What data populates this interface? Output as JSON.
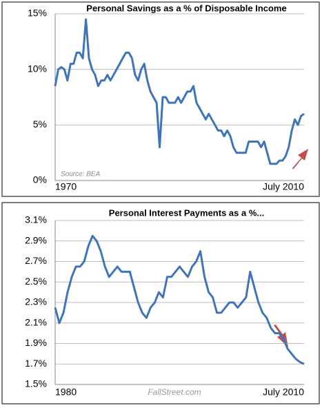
{
  "chart_data": [
    {
      "type": "line",
      "title": "Personal Savings as a % of Disposable Income",
      "annotation": "Source: BEA",
      "color": "#3f74bb",
      "categories": [
        "1970",
        null,
        null,
        null,
        null,
        null,
        null,
        null,
        null,
        null,
        null,
        null,
        null,
        null,
        null,
        null,
        null,
        null,
        null,
        null,
        null,
        null,
        null,
        null,
        null,
        null,
        null,
        null,
        null,
        null,
        null,
        null,
        null,
        null,
        null,
        null,
        null,
        null,
        null,
        null,
        null,
        null,
        null,
        null,
        null,
        null,
        null,
        null,
        null,
        null,
        null,
        null,
        null,
        null,
        null,
        null,
        null,
        null,
        null,
        null,
        null,
        null,
        null,
        null,
        null,
        null,
        null,
        null,
        null,
        null,
        null,
        null,
        null,
        null,
        null,
        null,
        null,
        null,
        null,
        null,
        null,
        "July 2010"
      ],
      "values": [
        8.5,
        10.0,
        10.2,
        10.0,
        9.0,
        10.5,
        10.5,
        11.5,
        11.5,
        11.0,
        14.5,
        11.0,
        10.0,
        9.5,
        8.5,
        9.0,
        9.0,
        9.5,
        9.0,
        9.5,
        10.0,
        10.5,
        11.0,
        11.5,
        11.5,
        11.0,
        9.5,
        9.0,
        10.0,
        10.5,
        9.0,
        8.0,
        7.5,
        7.0,
        3.0,
        7.5,
        7.5,
        7.0,
        7.0,
        7.0,
        7.5,
        7.0,
        7.5,
        8.0,
        8.0,
        8.5,
        7.0,
        6.5,
        6.0,
        5.5,
        6.0,
        5.5,
        5.0,
        4.5,
        4.5,
        4.0,
        4.5,
        4.0,
        3.0,
        2.5,
        2.5,
        2.5,
        2.5,
        3.5,
        3.5,
        3.5,
        3.5,
        3.0,
        3.5,
        2.5,
        1.5,
        1.5,
        1.5,
        1.8,
        1.8,
        2.2,
        3.0,
        4.5,
        5.5,
        5.0,
        5.8,
        6.0
      ],
      "ylim": [
        0,
        15
      ],
      "yticks": [
        {
          "value": 0,
          "label": "0%"
        },
        {
          "value": 5,
          "label": "5%"
        },
        {
          "value": 10,
          "label": "10%"
        },
        {
          "value": 15,
          "label": "15%"
        }
      ],
      "grid": true
    },
    {
      "type": "line",
      "title": "Personal Interest Payments as a %...",
      "annotation": "FallStreet.com",
      "color": "#3f74bb",
      "categories": [
        "1980",
        null,
        null,
        null,
        null,
        null,
        null,
        null,
        null,
        null,
        null,
        null,
        null,
        null,
        null,
        null,
        null,
        null,
        null,
        null,
        null,
        null,
        null,
        null,
        null,
        null,
        null,
        null,
        null,
        null,
        null,
        null,
        null,
        null,
        null,
        null,
        null,
        null,
        null,
        null,
        null,
        null,
        null,
        null,
        null,
        null,
        null,
        null,
        null,
        null,
        null,
        null,
        null,
        null,
        null,
        null,
        null,
        null,
        null,
        null,
        "July 2010"
      ],
      "values": [
        2.25,
        2.1,
        2.2,
        2.4,
        2.55,
        2.65,
        2.65,
        2.7,
        2.85,
        2.95,
        2.9,
        2.8,
        2.65,
        2.55,
        2.6,
        2.65,
        2.6,
        2.6,
        2.6,
        2.45,
        2.3,
        2.2,
        2.15,
        2.25,
        2.3,
        2.4,
        2.35,
        2.55,
        2.55,
        2.6,
        2.65,
        2.6,
        2.55,
        2.65,
        2.7,
        2.8,
        2.55,
        2.4,
        2.35,
        2.2,
        2.2,
        2.25,
        2.3,
        2.3,
        2.25,
        2.3,
        2.35,
        2.6,
        2.45,
        2.3,
        2.2,
        2.15,
        2.05,
        2.0,
        2.0,
        1.95,
        1.85,
        1.8,
        1.75,
        1.72,
        1.7
      ],
      "ylim": [
        1.5,
        3.1
      ],
      "yticks": [
        {
          "value": 1.5,
          "label": "1.5%"
        },
        {
          "value": 1.7,
          "label": "1.7%"
        },
        {
          "value": 1.9,
          "label": "1.9%"
        },
        {
          "value": 2.1,
          "label": "2.1%"
        },
        {
          "value": 2.3,
          "label": "2.3%"
        },
        {
          "value": 2.5,
          "label": "2.5%"
        },
        {
          "value": 2.7,
          "label": "2.7%"
        },
        {
          "value": 2.9,
          "label": "2.9%"
        },
        {
          "value": 3.1,
          "label": "3.1%"
        }
      ],
      "grid": true
    }
  ]
}
